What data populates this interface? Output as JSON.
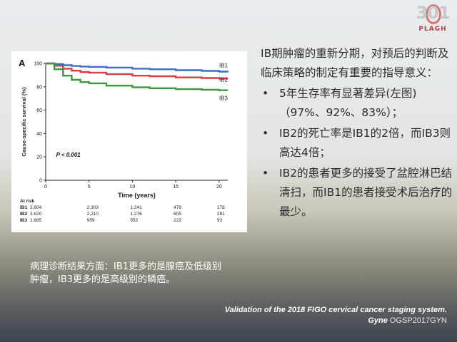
{
  "logo": {
    "number": "301",
    "text": "PLAGH"
  },
  "bullets": {
    "intro": "IB期肿瘤的重新分期，对预后的判断及临床策略的制定有重要的指导意义：",
    "bullet_symbol": "•",
    "items": [
      "5年生存率有显著差异(左图)（97%、92%、83%）；",
      "IB2的死亡率是IB1的2倍，而IB3则高达4倍；",
      "IB2的患者更多的接受了盆腔淋巴结清扫，而IB1的患者接受术后治疗的最少。"
    ]
  },
  "note": "病理诊断结果方面：IB1更多的是腺癌及低级别肿瘤，IB3更多的是高级别的鳞癌。",
  "citation": {
    "line1": "Validation of the 2018 FIGO cervical cancer staging system.",
    "line2": "Gyne",
    "watermark": "OGSP2017GYN"
  },
  "chart_data": {
    "type": "line",
    "panel_label": "A",
    "ylabel": "Cause-specific survival (%)",
    "xlabel": "Time (years)",
    "xlim": [
      0,
      21
    ],
    "ylim": [
      0,
      100
    ],
    "x_ticks": [
      0,
      5,
      10,
      15,
      20
    ],
    "y_ticks": [
      0,
      20,
      40,
      60,
      80,
      100
    ],
    "annotation": "P < 0.001",
    "series": [
      {
        "name": "IB1",
        "color": "#3a6fc4",
        "x": [
          0,
          1,
          2,
          3,
          4,
          5,
          7,
          10,
          12,
          15,
          18,
          20,
          21
        ],
        "y": [
          100,
          99.5,
          98.5,
          97.8,
          97.3,
          97,
          96.4,
          95.5,
          95,
          94.2,
          93.6,
          93,
          92.5
        ]
      },
      {
        "name": "IB2",
        "color": "#d93c3c",
        "x": [
          0,
          1,
          2,
          3,
          4,
          5,
          7,
          10,
          12,
          15,
          18,
          20,
          21
        ],
        "y": [
          100,
          98,
          95.5,
          93.8,
          92.6,
          92,
          90.8,
          89.5,
          89,
          88,
          87.5,
          87,
          87
        ]
      },
      {
        "name": "IB3",
        "color": "#3a9a3a",
        "x": [
          0,
          1,
          2,
          3,
          4,
          5,
          7,
          10,
          12,
          15,
          18,
          20,
          21
        ],
        "y": [
          100,
          95,
          89.5,
          86,
          84,
          83,
          81,
          79.5,
          78.8,
          78,
          77.5,
          77,
          77
        ]
      }
    ],
    "at_risk": {
      "title": "At risk",
      "times": [
        0,
        5,
        10,
        15,
        20
      ],
      "rows": [
        {
          "label": "IB1",
          "values": [
            "3,604",
            "2,303",
            "1,241",
            "478",
            "178"
          ]
        },
        {
          "label": "IB2",
          "values": [
            "3,620",
            "2,210",
            "1,276",
            "605",
            "281"
          ]
        },
        {
          "label": "IB3",
          "values": [
            "1,685",
            "959",
            "552",
            "222",
            "93"
          ]
        }
      ]
    }
  }
}
